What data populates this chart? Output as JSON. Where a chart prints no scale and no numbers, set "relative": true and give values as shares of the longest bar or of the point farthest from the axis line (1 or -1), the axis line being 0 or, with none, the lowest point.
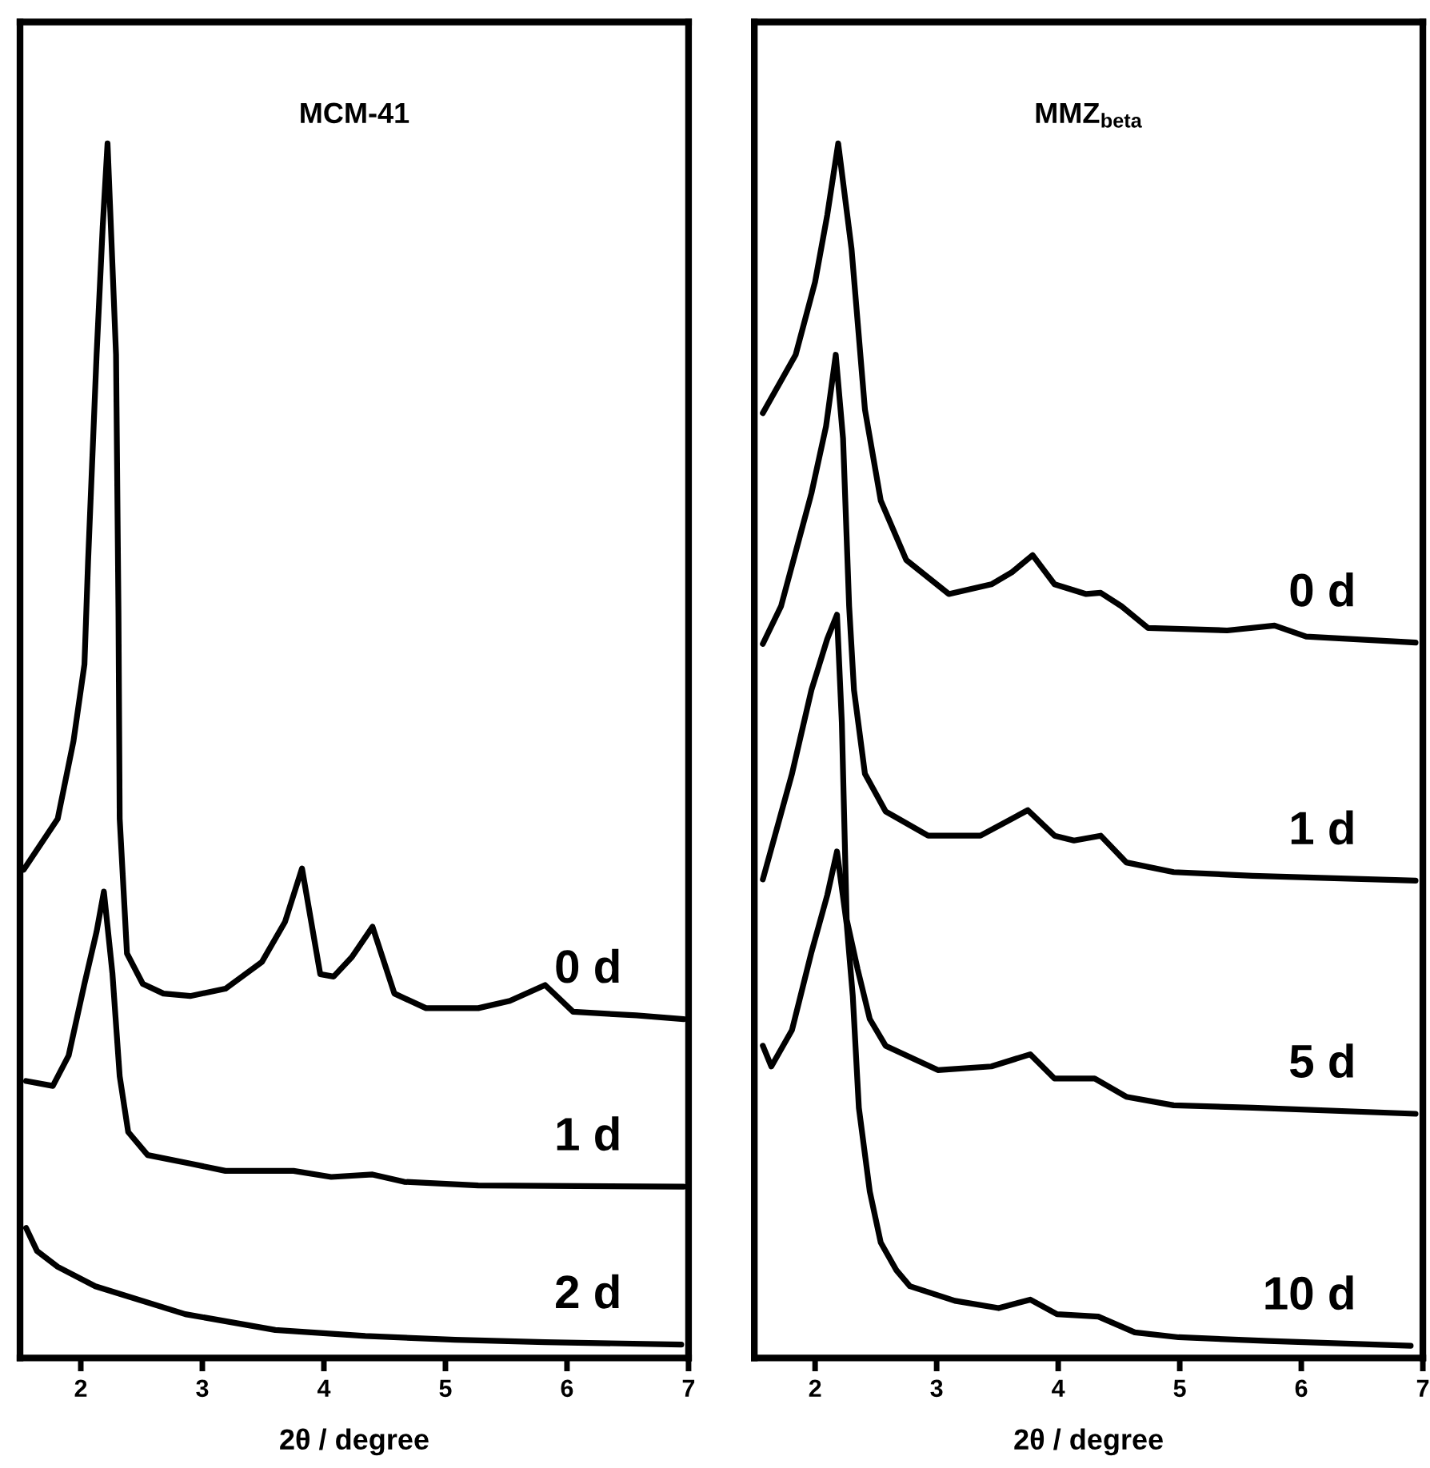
{
  "chart_data": [
    {
      "type": "line",
      "title": "MCM-41",
      "xlabel": "2θ / degree",
      "relative": true,
      "xlim": [
        1.5,
        7
      ],
      "xticks": [
        2,
        3,
        4,
        5,
        6,
        7
      ],
      "tick_labels": "x",
      "legend": false,
      "grid": false,
      "marker": "none",
      "line_style": "solid",
      "series": [
        {
          "name": "0 d",
          "color": "#000000",
          "x": [
            1.53,
            1.81,
            1.94,
            2.03,
            2.06,
            2.13,
            2.18,
            2.22,
            2.29,
            2.31,
            2.32,
            2.38,
            2.51,
            2.68,
            2.9,
            3.19,
            3.49,
            3.68,
            3.82,
            3.97,
            4.08,
            4.23,
            4.4,
            4.58,
            4.84,
            5.27,
            5.53,
            5.82,
            6.05,
            6.57,
            6.96
          ],
          "values": [
            0.402,
            0.444,
            0.508,
            0.571,
            0.656,
            0.826,
            0.931,
            1.0,
            0.826,
            0.613,
            0.444,
            0.333,
            0.308,
            0.3,
            0.298,
            0.304,
            0.326,
            0.359,
            0.403,
            0.316,
            0.314,
            0.33,
            0.355,
            0.3,
            0.288,
            0.288,
            0.294,
            0.307,
            0.285,
            0.282,
            0.279
          ]
        },
        {
          "name": "1 d",
          "color": "#000000",
          "x": [
            1.55,
            1.77,
            1.9,
            2.03,
            2.13,
            2.19,
            2.26,
            2.32,
            2.39,
            2.55,
            2.9,
            3.19,
            3.75,
            4.06,
            4.4,
            4.66,
            5.27,
            6.96
          ],
          "values": [
            0.228,
            0.224,
            0.249,
            0.308,
            0.351,
            0.384,
            0.317,
            0.232,
            0.186,
            0.167,
            0.16,
            0.154,
            0.154,
            0.149,
            0.151,
            0.145,
            0.142,
            0.141
          ]
        },
        {
          "name": "2 d",
          "color": "#000000",
          "x": [
            1.55,
            1.64,
            1.81,
            2.12,
            2.86,
            3.6,
            4.34,
            5.08,
            5.82,
            6.94
          ],
          "values": [
            0.107,
            0.088,
            0.075,
            0.059,
            0.036,
            0.023,
            0.018,
            0.015,
            0.013,
            0.011
          ]
        }
      ]
    },
    {
      "type": "line",
      "title": "MMZ$_{beta}$",
      "xlabel": "2θ / degree",
      "relative": true,
      "xlim": [
        1.5,
        7
      ],
      "xticks": [
        2,
        3,
        4,
        5,
        6,
        7
      ],
      "tick_labels": "x",
      "legend": false,
      "grid": false,
      "marker": "none",
      "line_style": "solid",
      "series": [
        {
          "name": "0 d",
          "color": "#000000",
          "x": [
            1.57,
            1.84,
            2.0,
            2.1,
            2.19,
            2.3,
            2.41,
            2.54,
            2.75,
            3.1,
            3.45,
            3.62,
            3.79,
            3.97,
            4.23,
            4.35,
            4.52,
            4.74,
            5.39,
            5.78,
            6.04,
            6.94
          ],
          "values": [
            0.778,
            0.826,
            0.886,
            0.941,
            1.0,
            0.913,
            0.781,
            0.706,
            0.657,
            0.629,
            0.637,
            0.647,
            0.661,
            0.637,
            0.629,
            0.63,
            0.619,
            0.601,
            0.599,
            0.603,
            0.594,
            0.589
          ]
        },
        {
          "name": "1 d",
          "color": "#000000",
          "x": [
            1.57,
            1.72,
            1.97,
            2.09,
            2.17,
            2.23,
            2.28,
            2.32,
            2.41,
            2.58,
            2.93,
            3.36,
            3.75,
            3.97,
            4.13,
            4.35,
            4.56,
            4.95,
            5.6,
            6.94
          ],
          "values": [
            0.588,
            0.619,
            0.712,
            0.767,
            0.826,
            0.757,
            0.619,
            0.55,
            0.481,
            0.45,
            0.43,
            0.43,
            0.451,
            0.43,
            0.426,
            0.43,
            0.408,
            0.4,
            0.397,
            0.393
          ]
        },
        {
          "name": "5 d",
          "color": "#000000",
          "x": [
            1.57,
            1.81,
            1.97,
            2.1,
            2.18,
            2.22,
            2.26,
            2.35,
            2.45,
            2.58,
            3.01,
            3.45,
            3.77,
            3.97,
            4.3,
            4.56,
            4.95,
            5.6,
            6.94
          ],
          "values": [
            0.394,
            0.481,
            0.55,
            0.592,
            0.612,
            0.523,
            0.361,
            0.32,
            0.279,
            0.257,
            0.237,
            0.24,
            0.25,
            0.23,
            0.23,
            0.215,
            0.208,
            0.206,
            0.201
          ]
        },
        {
          "name": "10 d",
          "color": "#000000",
          "x": [
            1.57,
            1.64,
            1.81,
            1.97,
            2.1,
            2.18,
            2.26,
            2.31,
            2.36,
            2.45,
            2.54,
            2.67,
            2.78,
            3.15,
            3.51,
            3.77,
            3.99,
            4.33,
            4.63,
            4.99,
            5.73,
            6.9
          ],
          "values": [
            0.257,
            0.24,
            0.27,
            0.334,
            0.381,
            0.417,
            0.357,
            0.298,
            0.206,
            0.137,
            0.095,
            0.072,
            0.059,
            0.047,
            0.041,
            0.048,
            0.036,
            0.034,
            0.021,
            0.017,
            0.014,
            0.01
          ]
        }
      ]
    }
  ]
}
